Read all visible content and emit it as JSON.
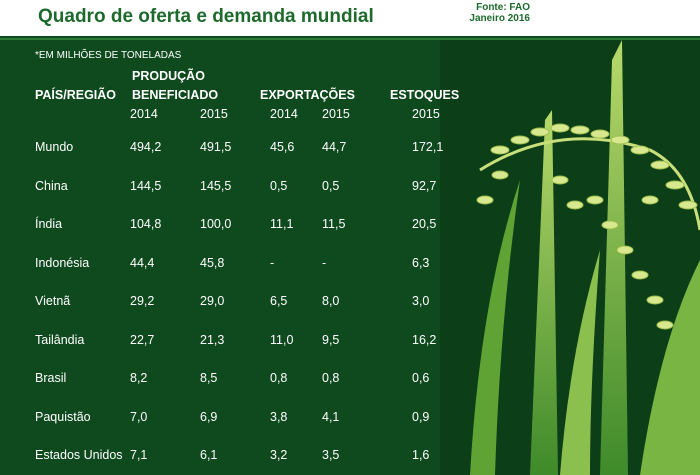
{
  "header": {
    "title": "Quadro de oferta e demanda mundial",
    "source": [
      "Fonte: FAO",
      "Janeiro 2016"
    ]
  },
  "table": {
    "note": "*EM MILHÕES DE TONELADAS",
    "row_header": "PAÍS/REGIÃO",
    "groups": [
      {
        "label": [
          "PRODUÇÃO",
          "BENEFICIADO"
        ],
        "years": [
          "2014",
          "2015"
        ]
      },
      {
        "label": [
          "EXPORTAÇÕES"
        ],
        "years": [
          "2014",
          "2015"
        ]
      },
      {
        "label": [
          "ESTOQUES"
        ],
        "years": [
          "2015"
        ]
      }
    ],
    "rows": [
      [
        "Mundo",
        "494,2",
        "491,5",
        "45,6",
        "44,7",
        "172,1"
      ],
      [
        "China",
        "144,5",
        "145,5",
        "0,5",
        "0,5",
        "92,7"
      ],
      [
        "Índia",
        "104,8",
        "100,0",
        "11,1",
        "11,5",
        "20,5"
      ],
      [
        "Indonésia",
        "44,4",
        "45,8",
        "-",
        "-",
        "6,3"
      ],
      [
        "Vietnã",
        "29,2",
        "29,0",
        "6,5",
        "8,0",
        "3,0"
      ],
      [
        "Tailândia",
        "22,7",
        "21,3",
        "11,0",
        "9,5",
        "16,2"
      ],
      [
        "Brasil",
        "8,2",
        "8,5",
        "0,8",
        "0,8",
        "0,6"
      ],
      [
        "Paquistão",
        "7,0",
        "6,9",
        "3,8",
        "4,1",
        "0,9"
      ],
      [
        "Estados Unidos",
        "7,1",
        "6,1",
        "3,2",
        "3,5",
        "1,6"
      ]
    ]
  }
}
